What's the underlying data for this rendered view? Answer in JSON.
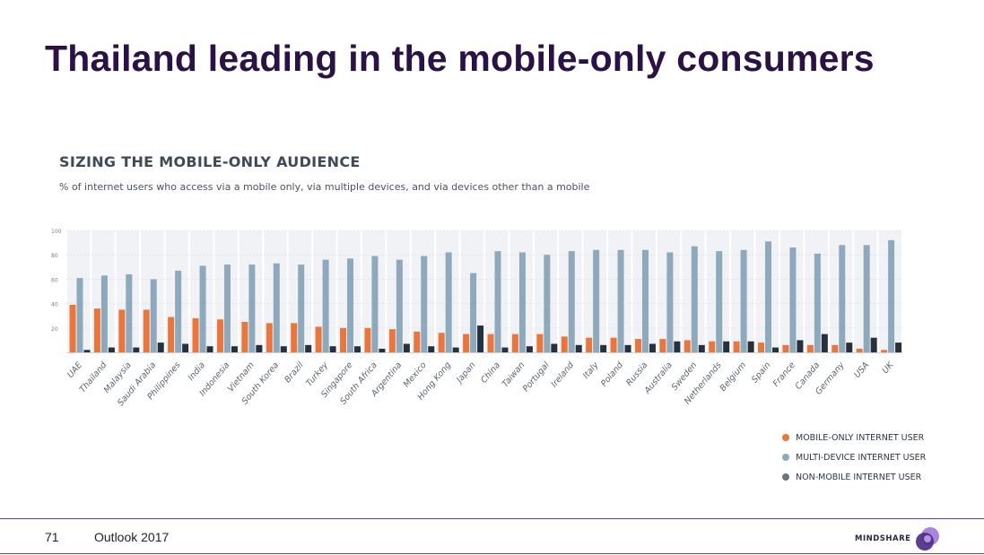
{
  "slide": {
    "title": "Thailand leading in the mobile-only consumers",
    "page_number": "71",
    "footer_label": "Outlook 2017",
    "brand": "MINDSHARE"
  },
  "colors": {
    "mobile_only": "#e8773f",
    "multi_device": "#8ea9bb",
    "non_mobile": "#26313d",
    "panel": "#f1f2f5",
    "title": "#2a1245",
    "footer_rule": "#6b3fa0"
  },
  "chart_data": {
    "type": "bar",
    "title": "SIZING THE MOBILE-ONLY AUDIENCE",
    "subtitle": "% of internet users who access via a mobile only, via multiple devices, and via devices other than a mobile",
    "categories": [
      "UAE",
      "Thailand",
      "Malaysia",
      "Saudi Arabia",
      "Philippines",
      "India",
      "Indonesia",
      "Vietnam",
      "South Korea",
      "Brazil",
      "Turkey",
      "Singapore",
      "South Africa",
      "Argentina",
      "Mexico",
      "Hong Kong",
      "Japan",
      "China",
      "Taiwan",
      "Portugal",
      "Ireland",
      "Italy",
      "Poland",
      "Russia",
      "Australia",
      "Sweden",
      "Netherlands",
      "Belgium",
      "Spain",
      "France",
      "Canada",
      "Germany",
      "USA",
      "UK"
    ],
    "series": [
      {
        "name": "Mobile-only internet user",
        "color": "#e8773f",
        "values": [
          39,
          36,
          35,
          35,
          29,
          28,
          27,
          25,
          24,
          24,
          21,
          20,
          20,
          19,
          17,
          16,
          15,
          15,
          15,
          15,
          13,
          12,
          12,
          11,
          11,
          10,
          9,
          9,
          8,
          6,
          6,
          6,
          3,
          2
        ]
      },
      {
        "name": "Multi-device internet user",
        "color": "#8ea9bb",
        "values": [
          61,
          63,
          64,
          60,
          67,
          71,
          72,
          72,
          73,
          72,
          76,
          77,
          79,
          76,
          79,
          82,
          65,
          83,
          82,
          80,
          83,
          84,
          84,
          84,
          82,
          87,
          83,
          84,
          91,
          86,
          81,
          88,
          88,
          92
        ]
      },
      {
        "name": "Non-mobile internet user",
        "color": "#26313d",
        "values": [
          2,
          4,
          4,
          8,
          7,
          5,
          5,
          6,
          5,
          6,
          5,
          5,
          3,
          7,
          5,
          4,
          22,
          4,
          5,
          7,
          6,
          6,
          6,
          7,
          9,
          6,
          9,
          9,
          4,
          10,
          15,
          8,
          12,
          8
        ]
      }
    ],
    "ylim": [
      0,
      100
    ],
    "yticks": [
      100,
      80,
      60,
      40,
      20
    ],
    "grid": true,
    "legend_position": "bottom-right"
  }
}
